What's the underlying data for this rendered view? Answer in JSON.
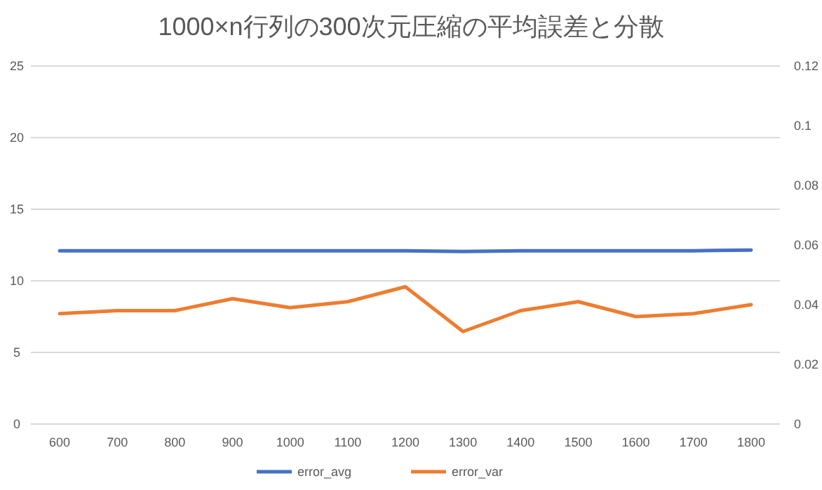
{
  "chart_data": {
    "type": "line",
    "title": "1000×n行列の300次元圧縮の平均誤差と分散",
    "categories": [
      "600",
      "700",
      "800",
      "900",
      "1000",
      "1100",
      "1200",
      "1300",
      "1400",
      "1500",
      "1600",
      "1700",
      "1800"
    ],
    "series": [
      {
        "name": "error_avg",
        "color": "#4472c4",
        "values": [
          12.1,
          12.1,
          12.1,
          12.1,
          12.1,
          12.1,
          12.1,
          12.05,
          12.1,
          12.1,
          12.1,
          12.1,
          12.15
        ]
      },
      {
        "name": "error_var",
        "color": "#ed7d31",
        "axis": "y2",
        "values": [
          0.037,
          0.038,
          0.038,
          0.042,
          0.039,
          0.041,
          0.046,
          0.031,
          0.038,
          0.041,
          0.036,
          0.037,
          0.04
        ]
      }
    ],
    "ylim": [
      0,
      25
    ],
    "yticks": [
      0,
      5,
      10,
      15,
      20,
      25
    ],
    "y2lim": [
      0,
      0.12
    ],
    "y2ticks": [
      0,
      0.02,
      0.04,
      0.06,
      0.08,
      0.1,
      0.12
    ],
    "grid": "y",
    "legend": "bottom",
    "marker": "none",
    "line_style": "solid"
  }
}
